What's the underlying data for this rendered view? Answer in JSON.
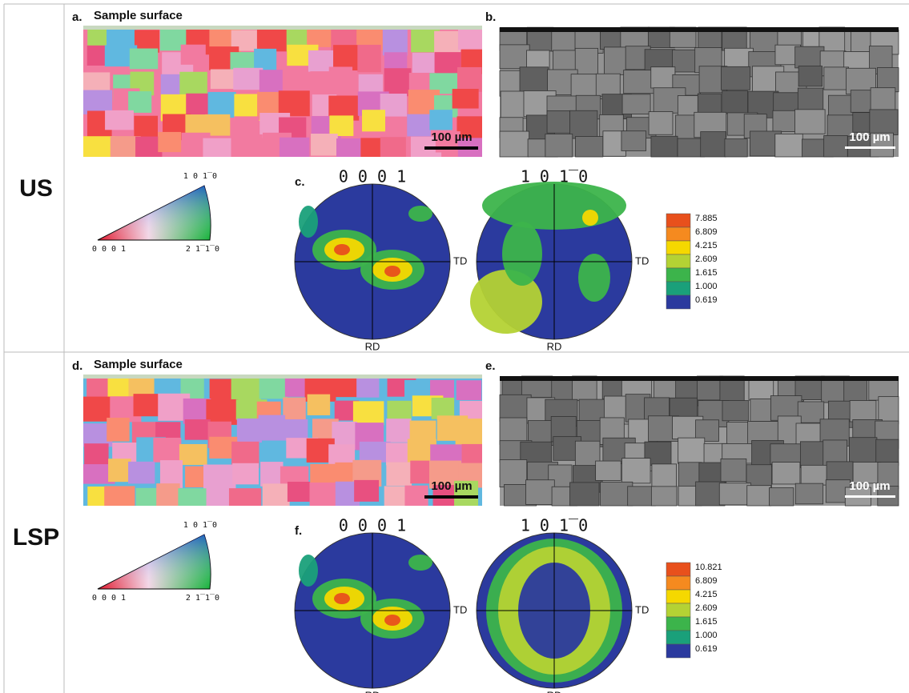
{
  "rows": [
    {
      "label": "US",
      "map_label": "a.",
      "map_title": "Sample surface",
      "map_scale": "100 µm",
      "sem_label": "b.",
      "sem_scale": "100 µm",
      "ipf": {
        "top": "1 0 1̅ 0",
        "left": "0 0 0 1",
        "right": "2 1̅ 1̅ 0"
      },
      "pf_label": "c.",
      "pf_titles": [
        "0 0 0 1",
        "1 0 1̅ 0"
      ],
      "td": "TD",
      "rd": "RD",
      "legend": [
        "7.885",
        "6.809",
        "4.215",
        "2.609",
        "1.615",
        "1.000",
        "0.619"
      ]
    },
    {
      "label": "LSP",
      "map_label": "d.",
      "map_title": "Sample surface",
      "map_scale": "100 µm",
      "sem_label": "e.",
      "sem_scale": "100 µm",
      "ipf": {
        "top": "1 0 1̅ 0",
        "left": "0 0 0 1",
        "right": "2 1̅ 1̅ 0"
      },
      "pf_label": "f.",
      "pf_titles": [
        "0 0 0 1",
        "1 0 1̅ 0"
      ],
      "td": "TD",
      "rd": "RD",
      "legend": [
        "10.821",
        "6.809",
        "4.215",
        "2.609",
        "1.615",
        "1.000",
        "0.619"
      ]
    }
  ]
}
